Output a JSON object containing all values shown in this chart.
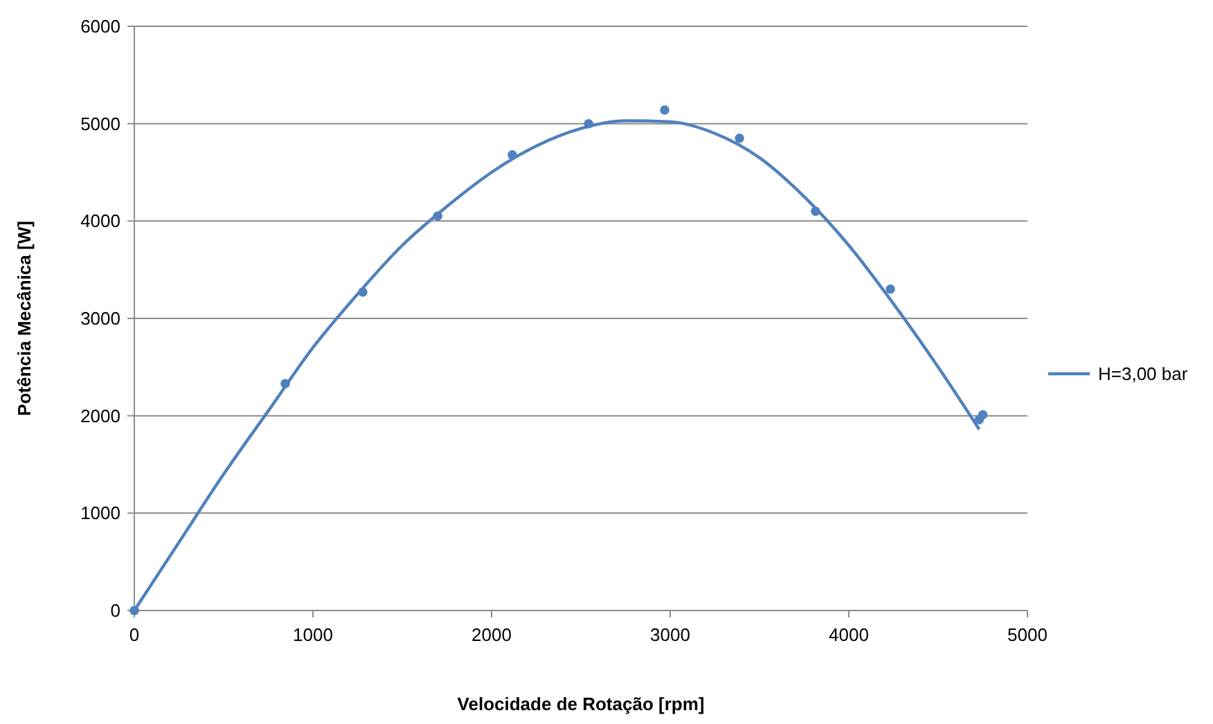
{
  "chart_data": {
    "type": "scatter",
    "xlabel": "Velocidade de Rotação  [rpm]",
    "ylabel": "Potência Mecânica  [W]",
    "xlim": [
      0,
      5000
    ],
    "ylim": [
      0,
      6000
    ],
    "xticks": [
      0,
      1000,
      2000,
      3000,
      4000,
      5000
    ],
    "yticks": [
      0,
      1000,
      2000,
      3000,
      4000,
      5000,
      6000
    ],
    "grid": "y",
    "legend": "right",
    "marker": "circle",
    "series": [
      {
        "color": "#4f81bd",
        "x": [
          0,
          845,
          1279,
          1698,
          2116,
          2543,
          2969,
          3388,
          3814,
          4233,
          4730,
          4750
        ],
        "values": [
          0,
          2330,
          3270,
          4050,
          4680,
          5000,
          5140,
          4850,
          4100,
          3300,
          1960,
          2010
        ]
      },
      {
        "type": "line",
        "name": "H=3,00 bar",
        "color": "#4f81bd",
        "marker": "none",
        "x": [
          0,
          250,
          500,
          750,
          1000,
          1250,
          1500,
          1750,
          2000,
          2250,
          2500,
          2750,
          3000,
          3250,
          3500,
          3750,
          4000,
          4250,
          4500,
          4730
        ],
        "values": [
          0,
          700,
          1400,
          2050,
          2700,
          3250,
          3750,
          4150,
          4500,
          4770,
          4950,
          5030,
          5020,
          4900,
          4650,
          4250,
          3750,
          3150,
          2500,
          1860
        ]
      }
    ]
  }
}
